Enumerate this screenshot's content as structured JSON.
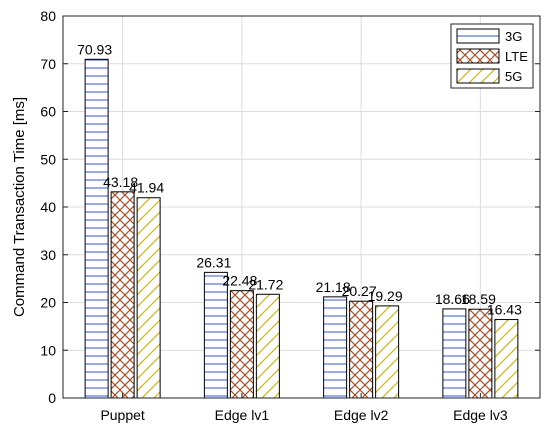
{
  "chart_data": {
    "type": "bar",
    "ylabel": "Command Transaction Time [ms]",
    "xlabel": "",
    "ylim": [
      0,
      80
    ],
    "yticks": [
      0,
      10,
      20,
      30,
      40,
      50,
      60,
      70,
      80
    ],
    "grid": true,
    "legend_position": "top-right",
    "categories": [
      "Puppet",
      "Edge lv1",
      "Edge lv2",
      "Edge lv3"
    ],
    "series": [
      {
        "name": "3G",
        "values": [
          70.93,
          26.31,
          21.18,
          18.66
        ],
        "color": "#3355dd",
        "pattern": "horizontal-lines"
      },
      {
        "name": "LTE",
        "values": [
          43.18,
          22.48,
          20.27,
          18.59
        ],
        "color": "#a0522d",
        "pattern": "crosshatch"
      },
      {
        "name": "5G",
        "values": [
          41.94,
          21.72,
          19.29,
          16.43
        ],
        "color": "#d4b800",
        "pattern": "diagonal-lines"
      }
    ],
    "data_labels": [
      [
        "70.93",
        "26.31",
        "21.18",
        "18.66"
      ],
      [
        "43.18",
        "22.48",
        "20.27",
        "18.59"
      ],
      [
        "41.94",
        "21.72",
        "19.29",
        "16.43"
      ]
    ]
  }
}
